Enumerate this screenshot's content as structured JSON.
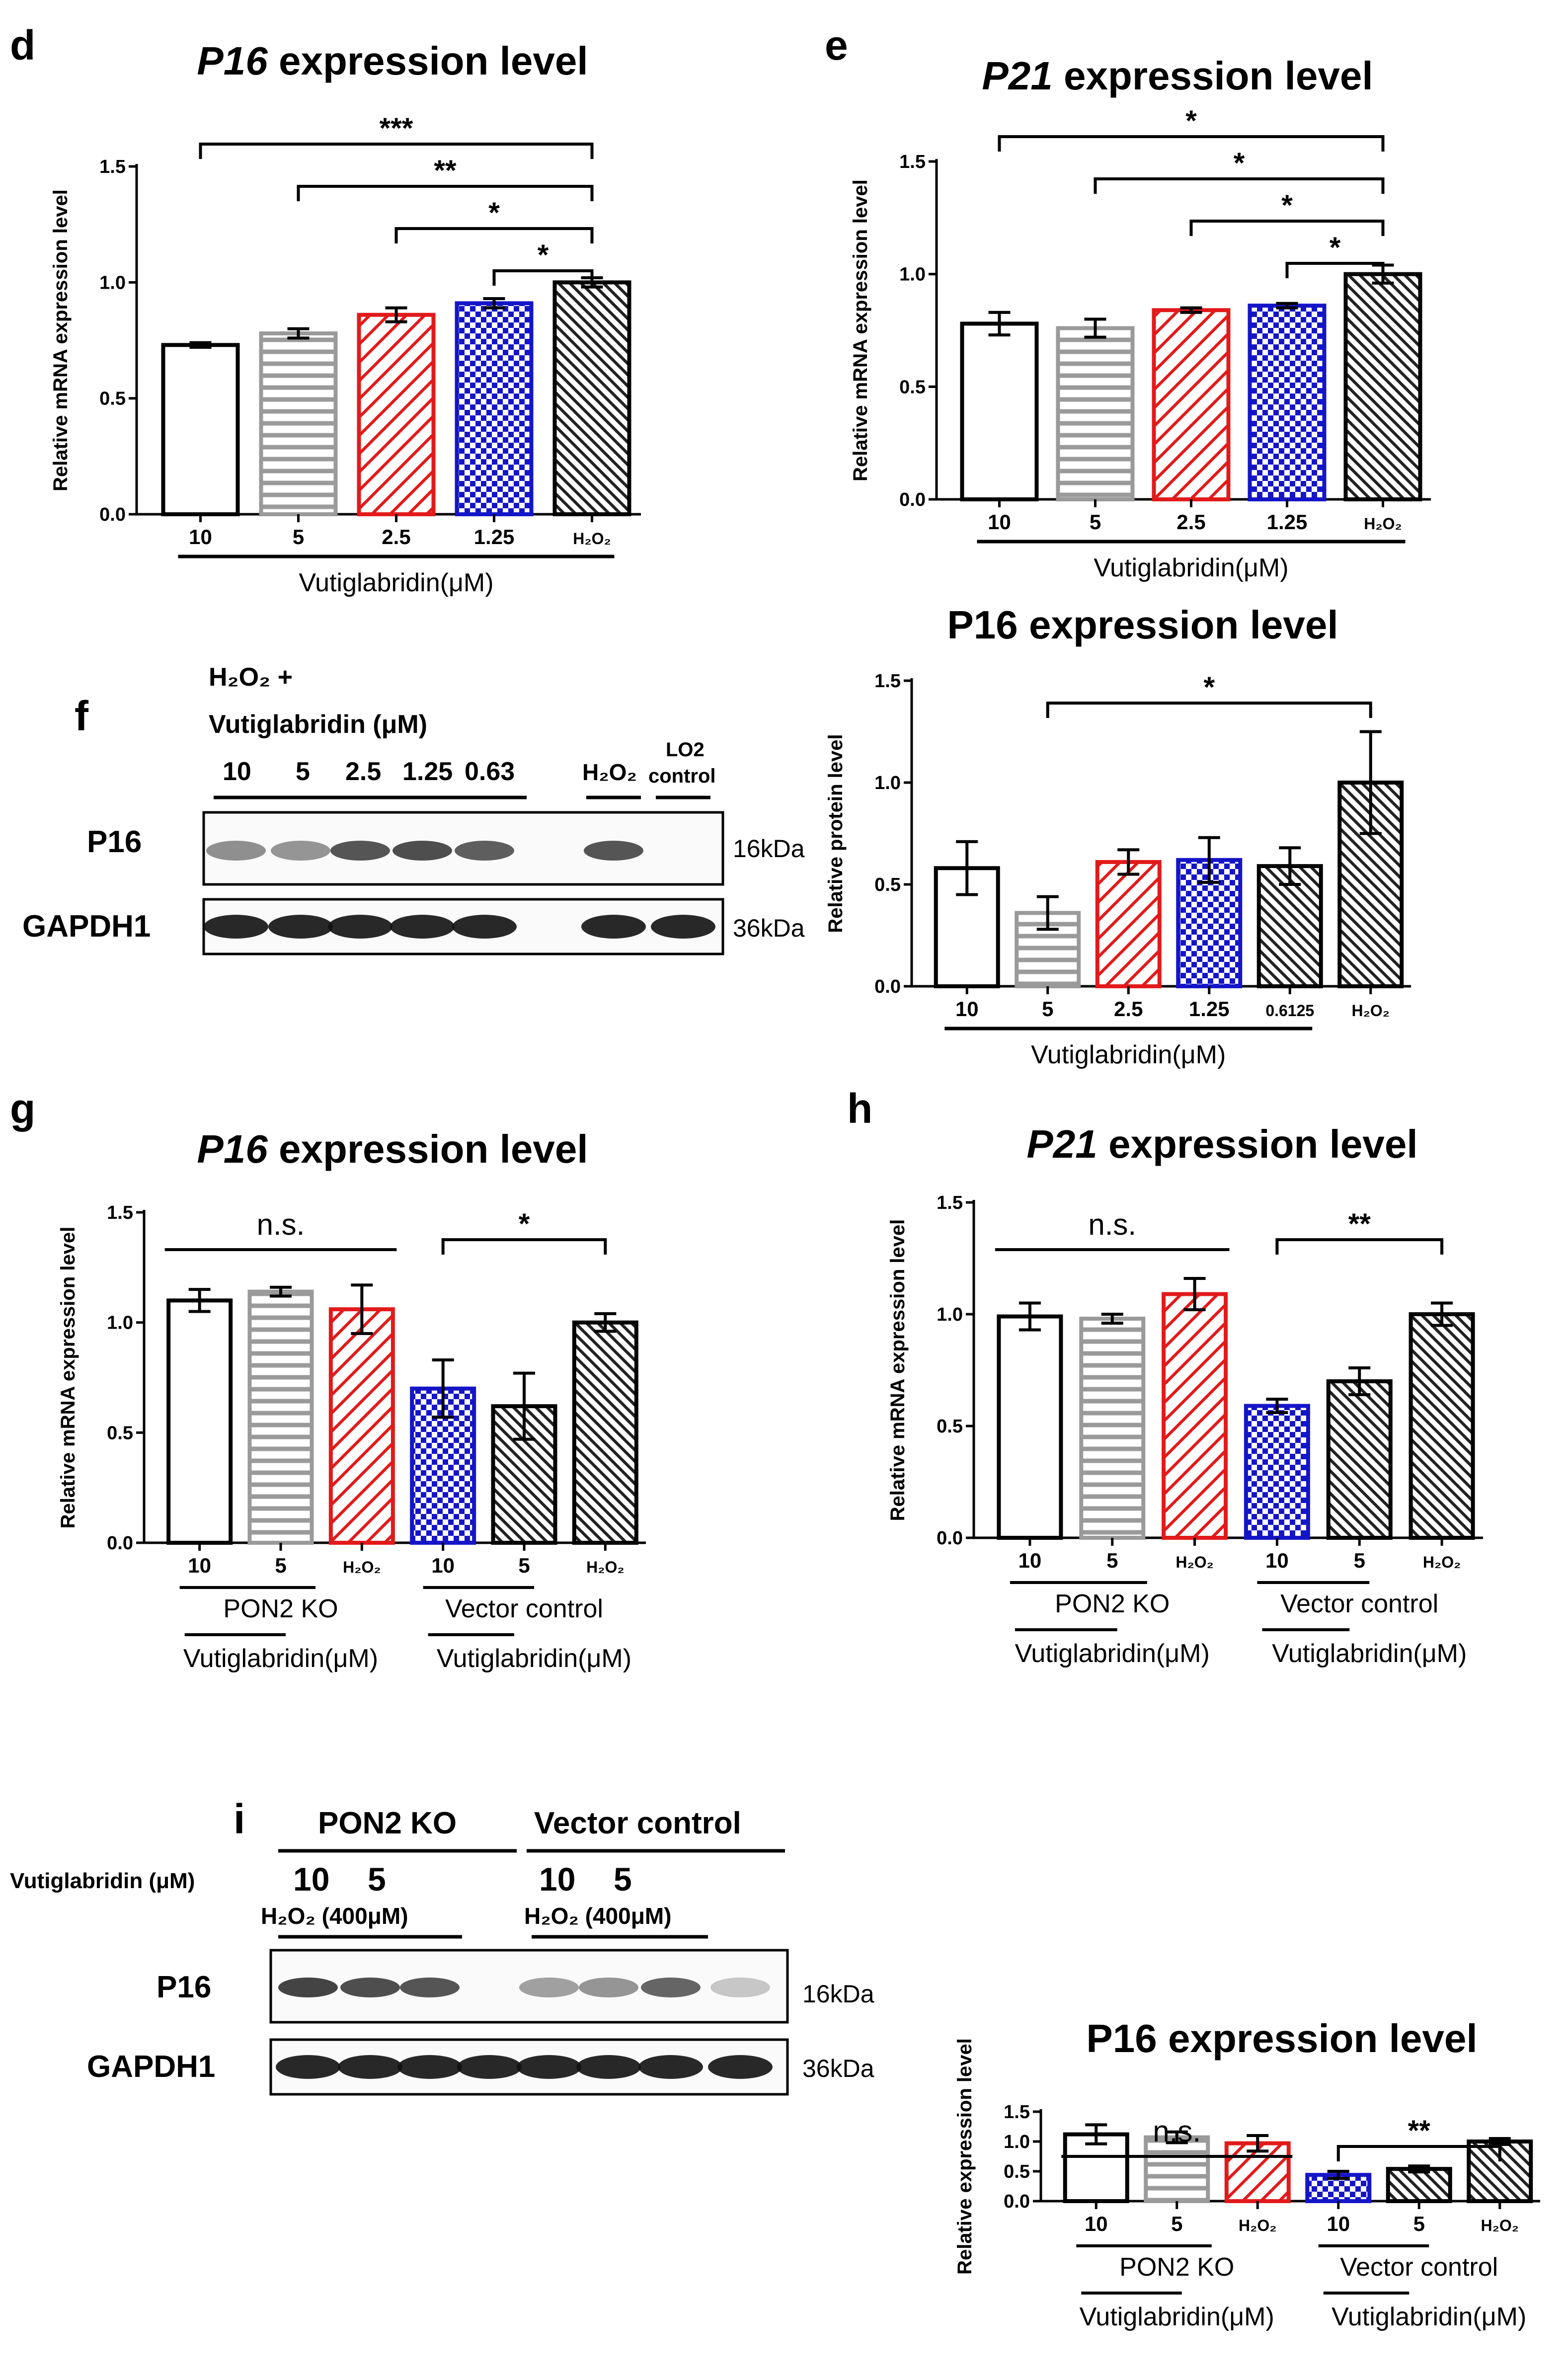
{
  "colors": {
    "black": "#000000",
    "grey": "#9a9a9a",
    "red": "#e21a1a",
    "blue": "#1515c8",
    "dark": "#222222"
  },
  "panel_labels": {
    "d": "d",
    "e": "e",
    "f": "f",
    "g": "g",
    "h": "h",
    "i": "i"
  },
  "chart_data": [
    {
      "id": "d",
      "type": "bar",
      "title_gene": "P16",
      "title_rest": " expression level",
      "ylabel": "Relative mRNA expression level",
      "ylim": [
        0,
        1.5
      ],
      "yticks": [
        "0.0",
        "0.5",
        "1.0",
        "1.5"
      ],
      "categories": [
        "10",
        "5",
        "2.5",
        "1.25",
        "H₂O₂"
      ],
      "values": [
        0.73,
        0.78,
        0.86,
        0.91,
        1.0
      ],
      "errors": [
        0.01,
        0.02,
        0.03,
        0.02,
        0.02
      ],
      "patterns": [
        "empty",
        "hline",
        "diag",
        "check",
        "dark"
      ],
      "group_labels": [
        "Vutiglabridin(μM)"
      ],
      "significance": [
        {
          "from": 0,
          "to": 4,
          "label": "***"
        },
        {
          "from": 1,
          "to": 4,
          "label": "**"
        },
        {
          "from": 2,
          "to": 4,
          "label": "*"
        },
        {
          "from": 3,
          "to": 4,
          "label": "*"
        }
      ]
    },
    {
      "id": "e",
      "type": "bar",
      "title_gene": "P21",
      "title_rest": " expression level",
      "ylabel": "Relative mRNA expression level",
      "ylim": [
        0,
        1.5
      ],
      "yticks": [
        "0.0",
        "0.5",
        "1.0",
        "1.5"
      ],
      "categories": [
        "10",
        "5",
        "2.5",
        "1.25",
        "H₂O₂"
      ],
      "values": [
        0.78,
        0.76,
        0.84,
        0.86,
        1.0
      ],
      "errors": [
        0.05,
        0.04,
        0.01,
        0.01,
        0.04
      ],
      "patterns": [
        "empty",
        "hline",
        "diag",
        "check",
        "dark"
      ],
      "group_labels": [
        "Vutiglabridin(μM)"
      ],
      "significance": [
        {
          "from": 0,
          "to": 4,
          "label": "*"
        },
        {
          "from": 1,
          "to": 4,
          "label": "*"
        },
        {
          "from": 2,
          "to": 4,
          "label": "*"
        },
        {
          "from": 3,
          "to": 4,
          "label": "*"
        }
      ]
    },
    {
      "id": "f2",
      "type": "bar",
      "title_gene": "",
      "title_rest": "P16 expression level",
      "ylabel": "Relative protein level",
      "ylim": [
        0,
        1.5
      ],
      "yticks": [
        "0.0",
        "0.5",
        "1.0",
        "1.5"
      ],
      "categories": [
        "10",
        "5",
        "2.5",
        "1.25",
        "0.6125",
        "H₂O₂"
      ],
      "values": [
        0.58,
        0.36,
        0.61,
        0.62,
        0.59,
        1.0
      ],
      "errors": [
        0.13,
        0.08,
        0.06,
        0.11,
        0.09,
        0.25
      ],
      "patterns": [
        "empty",
        "hline",
        "diag",
        "check",
        "dark",
        "dark"
      ],
      "group_labels": [
        "Vutiglabridin(μM)"
      ],
      "significance": [
        {
          "from": 1,
          "to": 5,
          "label": "*"
        }
      ]
    },
    {
      "id": "g",
      "type": "bar",
      "title_gene": "P16",
      "title_rest": " expression level",
      "ylabel": "Relative mRNA expression level",
      "ylim": [
        0,
        1.5
      ],
      "yticks": [
        "0.0",
        "0.5",
        "1.0",
        "1.5"
      ],
      "categories": [
        "10",
        "5",
        "H₂O₂",
        "10",
        "5",
        "H₂O₂"
      ],
      "values": [
        1.1,
        1.14,
        1.06,
        0.7,
        0.62,
        1.0
      ],
      "errors": [
        0.05,
        0.02,
        0.11,
        0.13,
        0.15,
        0.04
      ],
      "patterns": [
        "empty",
        "hline",
        "diag",
        "check",
        "dark",
        "dark"
      ],
      "group_labels": [
        "PON2 KO",
        "Vector control",
        "Vutiglabridin(μM)",
        "Vutiglabridin(μM)"
      ],
      "significance": [
        {
          "from": 0,
          "to": 2,
          "label": "n.s.",
          "plain": true
        },
        {
          "from": 3,
          "to": 5,
          "label": "*"
        }
      ]
    },
    {
      "id": "h",
      "type": "bar",
      "title_gene": "P21",
      "title_rest": " expression level",
      "ylabel": "Relative mRNA expression level",
      "ylim": [
        0,
        1.5
      ],
      "yticks": [
        "0.0",
        "0.5",
        "1.0",
        "1.5"
      ],
      "categories": [
        "10",
        "5",
        "H₂O₂",
        "10",
        "5",
        "H₂O₂"
      ],
      "values": [
        0.99,
        0.98,
        1.09,
        0.59,
        0.7,
        1.0
      ],
      "errors": [
        0.06,
        0.02,
        0.07,
        0.03,
        0.06,
        0.05
      ],
      "patterns": [
        "empty",
        "hline",
        "diag",
        "check",
        "dark",
        "dark"
      ],
      "group_labels": [
        "PON2 KO",
        "Vector control",
        "Vutiglabridin(μM)",
        "Vutiglabridin(μM)"
      ],
      "significance": [
        {
          "from": 0,
          "to": 2,
          "label": "n.s.",
          "plain": true
        },
        {
          "from": 3,
          "to": 5,
          "label": "**"
        }
      ]
    },
    {
      "id": "i2",
      "type": "bar",
      "title_gene": "",
      "title_rest": "P16 expression level",
      "ylabel": "Relative expression level",
      "ylim": [
        0,
        1.5
      ],
      "yticks": [
        "0.0",
        "0.5",
        "1.0",
        "1.5"
      ],
      "categories": [
        "10",
        "5",
        "H₂O₂",
        "10",
        "5",
        "H₂O₂"
      ],
      "values": [
        1.12,
        1.07,
        0.97,
        0.44,
        0.54,
        1.0
      ],
      "errors": [
        0.16,
        0.09,
        0.13,
        0.06,
        0.05,
        0.05
      ],
      "patterns": [
        "empty",
        "hline",
        "diag",
        "check",
        "dark",
        "dark"
      ],
      "group_labels": [
        "PON2 KO",
        "Vector control",
        "Vutiglabridin(μM)",
        "Vutiglabridin(μM)"
      ],
      "significance": [
        {
          "from": 0,
          "to": 2,
          "label": "n.s.",
          "plain": true
        },
        {
          "from": 3,
          "to": 5,
          "label": "**"
        }
      ]
    }
  ],
  "blot_f": {
    "header_1": "H₂O₂ +",
    "header_2": "Vutiglabridin (μM)",
    "lanes": [
      "10",
      "5",
      "2.5",
      "1.25",
      "0.63"
    ],
    "h2o2": "H₂O₂",
    "lo2_1": "LO2",
    "lo2_2": "control",
    "row1": "P16",
    "row2": "GAPDH1",
    "kda1": "16kDa",
    "kda2": "36kDa",
    "p16_intensity": [
      0.45,
      0.4,
      0.8,
      0.85,
      0.75,
      0.8,
      0.0
    ]
  },
  "blot_i": {
    "group1": "PON2 KO",
    "group2": "Vector control",
    "vutig": "Vutiglabridin (μM)",
    "dose_10": "10",
    "dose_5": "5",
    "h2o2_1": "H₂O₂ (400μM)",
    "h2o2_2": "H₂O₂ (400μM)",
    "row1": "P16",
    "row2": "GAPDH1",
    "kda1": "16kDa",
    "kda2": "36kDa",
    "p16_intensity": [
      0.9,
      0.85,
      0.8,
      0.0,
      0.35,
      0.4,
      0.7,
      0.1
    ]
  }
}
